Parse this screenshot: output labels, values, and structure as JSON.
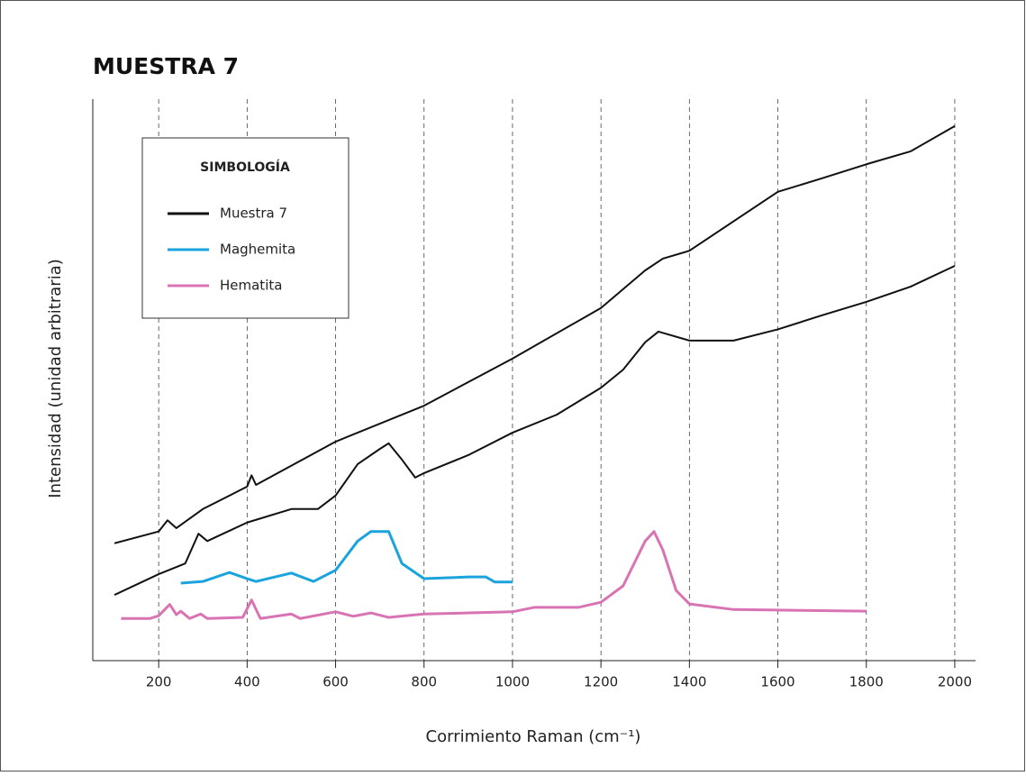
{
  "chart_data": {
    "type": "line",
    "title": "MUESTRA 7",
    "x_label": "Corrimiento Raman (cm⁻¹)",
    "y_label": "Intensidad (unidad arbitraria)",
    "legend_title": "SIMBOLOGÍA",
    "xlim": [
      51,
      2047
    ],
    "ylim": [
      0,
      100
    ],
    "xticks": [
      200,
      400,
      600,
      800,
      1000,
      1200,
      1400,
      1600,
      1800,
      2000
    ],
    "grid": true,
    "series": [
      {
        "name": "Muestra 7",
        "color": "#111111",
        "x": [
          100,
          200,
          220,
          240,
          300,
          400,
          410,
          420,
          600,
          800,
          1000,
          1200,
          1300,
          1340,
          1400,
          1600,
          1700,
          1800,
          1900,
          2000
        ],
        "values": [
          20.9,
          23,
          25,
          23.6,
          27,
          31,
          33,
          31.3,
          39,
          45.4,
          53.8,
          62.8,
          69.5,
          71.6,
          73,
          83.5,
          85.9,
          88.4,
          90.7,
          95.2
        ]
      },
      {
        "color": "#111111",
        "x": [
          100,
          200,
          260,
          290,
          310,
          400,
          500,
          560,
          600,
          650,
          700,
          720,
          750,
          780,
          800,
          900,
          1000,
          1100,
          1200,
          1250,
          1300,
          1330,
          1400,
          1500,
          1600,
          1700,
          1800,
          1900,
          2000
        ],
        "values": [
          11.7,
          15.4,
          17.3,
          22.6,
          21.3,
          24.6,
          27,
          27,
          29.4,
          35,
          37.7,
          38.7,
          35.8,
          32.6,
          33.4,
          36.6,
          40.6,
          43.8,
          48.6,
          51.8,
          56.7,
          58.6,
          57,
          57,
          59,
          61.5,
          63.9,
          66.6,
          70.3
        ]
      },
      {
        "name": "Maghemita",
        "color": "#1aa3dc",
        "x": [
          250,
          300,
          360,
          400,
          420,
          500,
          550,
          600,
          650,
          680,
          720,
          750,
          800,
          900,
          940,
          960,
          1000
        ],
        "values": [
          13.8,
          14.1,
          15.7,
          14.6,
          14.1,
          15.6,
          14.1,
          16.1,
          21.3,
          23,
          23,
          17.3,
          14.6,
          14.9,
          14.9,
          14,
          14
        ]
      },
      {
        "name": "Hematita",
        "color": "#d874b4",
        "x": [
          115,
          180,
          200,
          225,
          240,
          250,
          270,
          295,
          310,
          390,
          410,
          430,
          500,
          520,
          600,
          640,
          680,
          720,
          800,
          1000,
          1050,
          1150,
          1200,
          1250,
          1300,
          1320,
          1340,
          1370,
          1400,
          1500,
          1800
        ],
        "values": [
          7.5,
          7.5,
          8,
          10,
          8.2,
          8.8,
          7.5,
          8.3,
          7.5,
          7.7,
          10.8,
          7.5,
          8.3,
          7.5,
          8.7,
          7.9,
          8.5,
          7.7,
          8.3,
          8.7,
          9.5,
          9.5,
          10.4,
          13.3,
          21.3,
          23,
          19.7,
          12.5,
          10.1,
          9.1,
          8.8
        ]
      }
    ]
  }
}
